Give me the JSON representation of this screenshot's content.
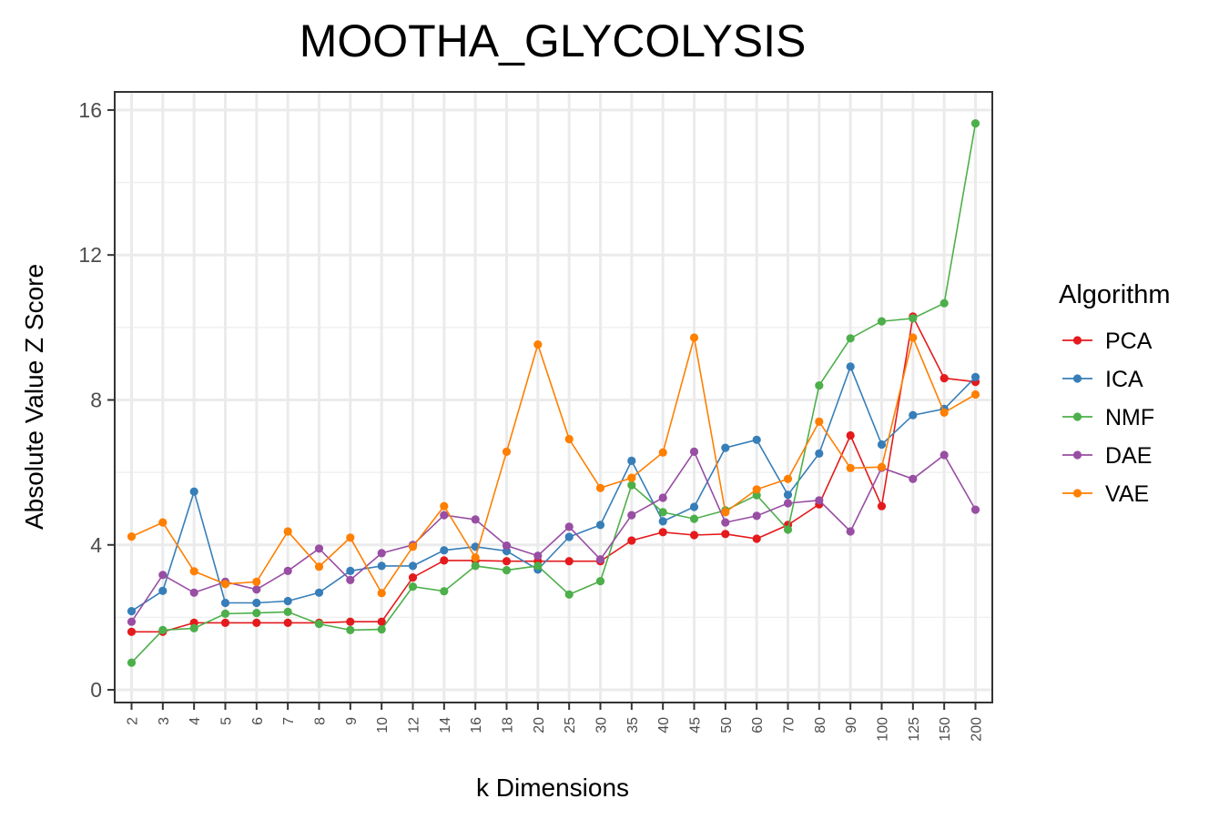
{
  "chart_data": {
    "type": "line",
    "title": "MOOTHA_GLYCOLYSIS",
    "xlabel": "k Dimensions",
    "ylabel": "Absolute Value Z Score",
    "categories": [
      "2",
      "3",
      "4",
      "5",
      "6",
      "7",
      "8",
      "9",
      "10",
      "12",
      "14",
      "16",
      "18",
      "20",
      "25",
      "30",
      "35",
      "40",
      "45",
      "50",
      "60",
      "70",
      "80",
      "90",
      "100",
      "125",
      "150",
      "200"
    ],
    "yticks": [
      0,
      4,
      8,
      12,
      16
    ],
    "ytick_labels": [
      "0",
      "4",
      "8",
      "12",
      "16"
    ],
    "ylim": [
      -0.35,
      16.5
    ],
    "grid": true,
    "legend": {
      "title": "Algorithm",
      "placement": "right"
    },
    "series": [
      {
        "name": "PCA",
        "color": "#e41a1c",
        "values": [
          1.6,
          1.6,
          1.85,
          1.85,
          1.85,
          1.85,
          1.85,
          1.88,
          1.88,
          3.1,
          3.57,
          3.57,
          3.55,
          3.55,
          3.55,
          3.55,
          4.12,
          4.35,
          4.27,
          4.3,
          4.17,
          4.55,
          5.12,
          7.02,
          5.07,
          10.3,
          8.6,
          8.5
        ]
      },
      {
        "name": "ICA",
        "color": "#377eb8",
        "values": [
          2.17,
          2.73,
          5.47,
          2.4,
          2.4,
          2.45,
          2.68,
          3.28,
          3.42,
          3.42,
          3.85,
          3.95,
          3.83,
          3.32,
          4.22,
          4.55,
          6.32,
          4.65,
          5.05,
          6.68,
          6.9,
          5.38,
          6.52,
          8.92,
          6.77,
          7.58,
          7.75,
          8.63
        ]
      },
      {
        "name": "NMF",
        "color": "#4daf4a",
        "values": [
          0.75,
          1.65,
          1.7,
          2.1,
          2.12,
          2.15,
          1.82,
          1.65,
          1.67,
          2.85,
          2.72,
          3.42,
          3.3,
          3.42,
          2.63,
          3.0,
          5.65,
          4.9,
          4.72,
          4.95,
          5.37,
          4.42,
          8.4,
          9.7,
          10.17,
          10.25,
          10.67,
          15.63
        ]
      },
      {
        "name": "DAE",
        "color": "#984ea3",
        "values": [
          1.88,
          3.17,
          2.68,
          2.98,
          2.77,
          3.28,
          3.9,
          3.03,
          3.77,
          4.0,
          4.82,
          4.7,
          3.98,
          3.7,
          4.5,
          3.6,
          4.82,
          5.3,
          6.57,
          4.62,
          4.8,
          5.15,
          5.23,
          4.37,
          6.13,
          5.82,
          6.48,
          4.97
        ]
      },
      {
        "name": "VAE",
        "color": "#ff7f00",
        "values": [
          4.23,
          4.62,
          3.27,
          2.92,
          2.98,
          4.37,
          3.4,
          4.2,
          2.67,
          3.95,
          5.07,
          3.65,
          6.57,
          9.53,
          6.92,
          5.57,
          5.85,
          6.55,
          9.72,
          4.9,
          5.53,
          5.82,
          7.4,
          6.12,
          6.15,
          9.72,
          7.65,
          8.15
        ]
      }
    ]
  }
}
